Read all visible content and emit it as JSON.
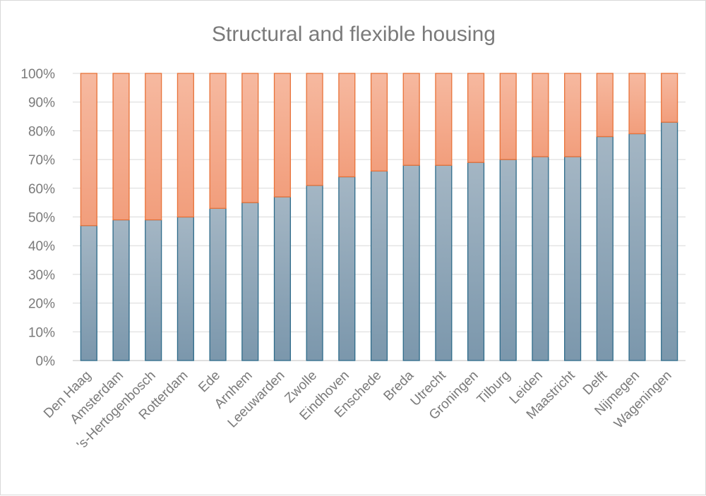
{
  "chart_data": {
    "type": "bar",
    "stacked": "percent",
    "title": "Structural and flexible housing",
    "xlabel": "",
    "ylabel": "",
    "ylim": [
      0,
      100
    ],
    "yticks": [
      "0%",
      "10%",
      "20%",
      "30%",
      "40%",
      "50%",
      "60%",
      "70%",
      "80%",
      "90%",
      "100%"
    ],
    "grid": true,
    "legend": "none",
    "categories": [
      "Den Haag",
      "Amsterdam",
      "'s-Hertogenbosch",
      "Rotterdam",
      "Ede",
      "Arnhem",
      "Leeuwarden",
      "Zwolle",
      "Eindhoven",
      "Enschede",
      "Breda",
      "Utrecht",
      "Groningen",
      "Tilburg",
      "Leiden",
      "Maastricht",
      "Delft",
      "Nijmegen",
      "Wageningen"
    ],
    "series": [
      {
        "values": [
          47,
          49,
          49,
          50,
          53,
          55,
          57,
          61,
          64,
          66,
          68,
          68,
          69,
          70,
          71,
          71,
          78,
          79,
          83
        ],
        "color": "#7f9bb0",
        "border": "#2e6b8a"
      },
      {
        "values": [
          53,
          51,
          51,
          50,
          47,
          45,
          43,
          39,
          36,
          34,
          32,
          32,
          31,
          30,
          29,
          29,
          22,
          21,
          17
        ],
        "color": "#f4a98a",
        "border": "#e8733a"
      }
    ]
  }
}
